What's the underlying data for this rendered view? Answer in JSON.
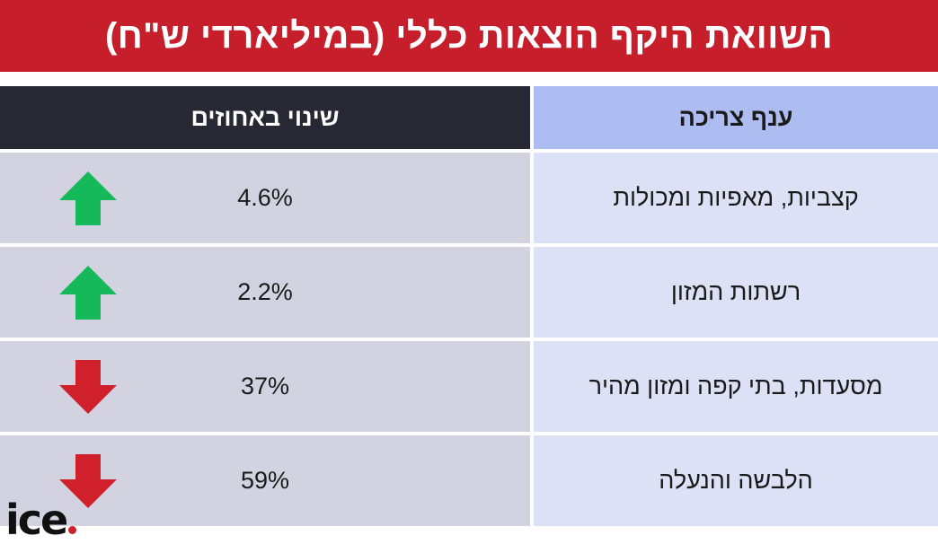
{
  "title": "השוואת היקף הוצאות כללי (במיליארדי ש\"ח)",
  "table": {
    "headers": {
      "category": "ענף צריכה",
      "change": "שינוי באחוזים"
    },
    "rows": [
      {
        "category": "קצביות, מאפיות ומכולות",
        "change": "4.6%",
        "direction": "up",
        "arrow_icon": "arrow-up-icon"
      },
      {
        "category": "רשתות המזון",
        "change": "2.2%",
        "direction": "up",
        "arrow_icon": "arrow-up-icon"
      },
      {
        "category": "מסעדות, בתי קפה ומזון מהיר",
        "change": "37%",
        "direction": "down",
        "arrow_icon": "arrow-down-icon"
      },
      {
        "category": "הלבשה והנעלה",
        "change": "59%",
        "direction": "down",
        "arrow_icon": "arrow-down-icon"
      }
    ]
  },
  "logo": {
    "text": "ice"
  },
  "colors": {
    "title_bg": "#c61e2a",
    "header_dark": "#272834",
    "header_light": "#aebdf1",
    "row_left": "#d3d2e0",
    "row_right": "#dce1f6",
    "arrow_up": "#16b95a",
    "arrow_down": "#d0202c",
    "logo_dot": "#d0202c"
  }
}
